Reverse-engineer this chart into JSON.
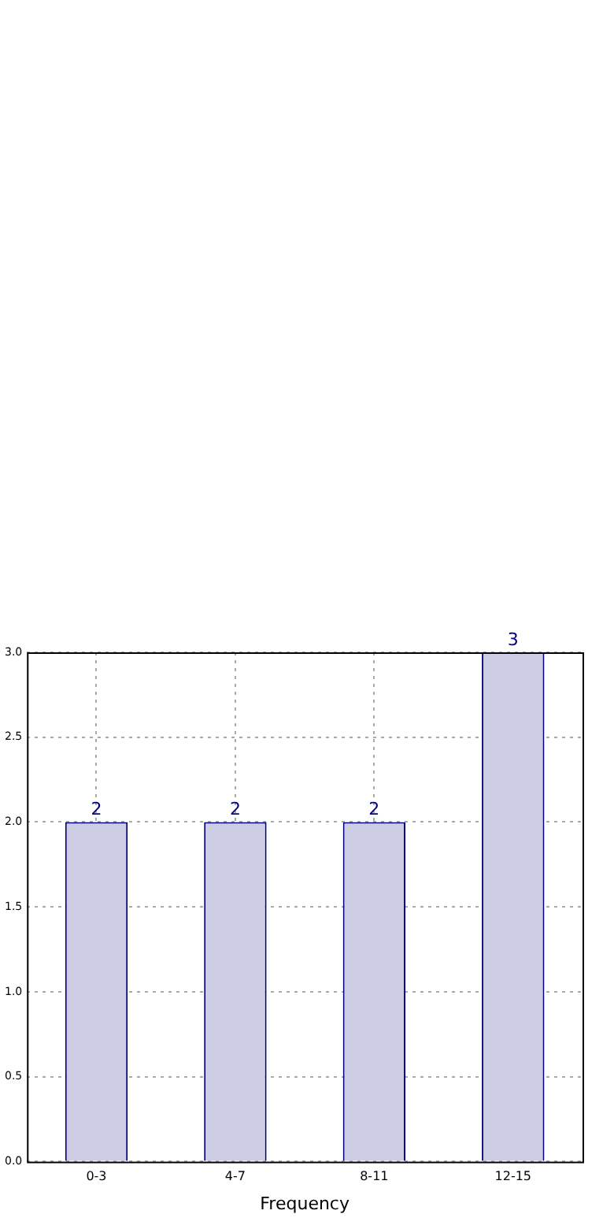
{
  "chart_data": {
    "type": "bar",
    "xlabel": "Frequency",
    "categories": [
      "0-3",
      "4-7",
      "8-11",
      "12-15"
    ],
    "series": [
      {
        "color": "#cccce5",
        "values": [
          2,
          2,
          2,
          3
        ]
      }
    ],
    "ylim": [
      0,
      3
    ],
    "yticks": [
      {
        "value": 0,
        "label": "0.0"
      },
      {
        "value": 0.5,
        "label": "0.5"
      },
      {
        "value": 1,
        "label": "1.0"
      },
      {
        "value": 1.5,
        "label": "1.5"
      },
      {
        "value": 2,
        "label": "2.0"
      },
      {
        "value": 2.5,
        "label": "2.5"
      },
      {
        "value": 3,
        "label": "3.0"
      }
    ],
    "grid": true,
    "legend": false,
    "data_labels": true
  }
}
